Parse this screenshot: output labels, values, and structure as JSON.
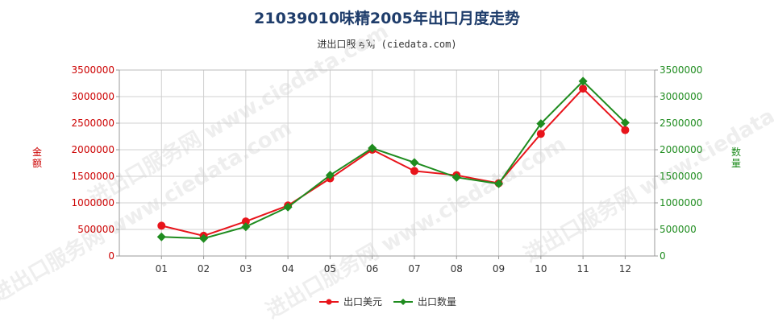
{
  "title": "21039010味精2005年出口月度走势",
  "subtitle": "进出口服务网 (ciedata.com)",
  "watermark": "进出口服务网 www.ciedata.com",
  "chart_data": {
    "type": "line",
    "categories": [
      "01",
      "02",
      "03",
      "04",
      "05",
      "06",
      "07",
      "08",
      "09",
      "10",
      "11",
      "12"
    ],
    "y_left": {
      "label": "金额",
      "ylim": [
        0,
        3500000
      ],
      "ticks": [
        "0",
        "500000",
        "1000000",
        "1500000",
        "2000000",
        "2500000",
        "3000000",
        "3500000"
      ]
    },
    "y_right": {
      "label": "数量",
      "ylim": [
        0,
        3500000
      ],
      "ticks": [
        "0",
        "500000",
        "1000000",
        "1500000",
        "2000000",
        "2500000",
        "3000000",
        "3500000"
      ]
    },
    "series": [
      {
        "name": "出口美元",
        "axis": "left",
        "color": "#e8141b",
        "marker": "circle",
        "values": [
          570000,
          380000,
          650000,
          950000,
          1460000,
          2000000,
          1600000,
          1520000,
          1370000,
          2300000,
          3150000,
          2370000
        ]
      },
      {
        "name": "出口数量",
        "axis": "right",
        "color": "#1f8c1f",
        "marker": "diamond",
        "values": [
          360000,
          330000,
          550000,
          920000,
          1520000,
          2030000,
          1760000,
          1480000,
          1360000,
          2490000,
          3290000,
          2510000
        ]
      }
    ],
    "grid": true,
    "legend": "bottom-center"
  }
}
